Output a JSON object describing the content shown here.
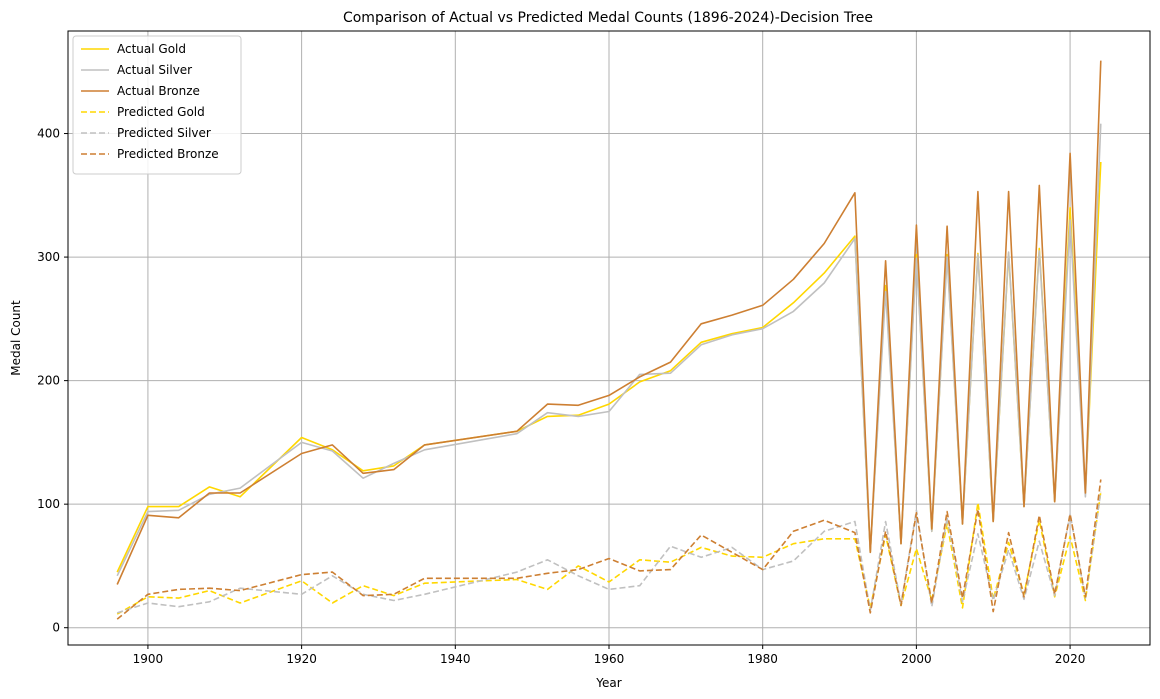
{
  "chart_data": {
    "type": "line",
    "title": "Comparison of Actual vs Predicted Medal Counts (1896-2024)-Decision Tree",
    "xlabel": "Year",
    "ylabel": "Medal Count",
    "xlim": [
      1889.6,
      2030.4
    ],
    "ylim": [
      -14,
      483
    ],
    "xticks": [
      1900,
      1920,
      1940,
      1960,
      1980,
      2000,
      2020
    ],
    "yticks": [
      0,
      100,
      200,
      300,
      400
    ],
    "grid": true,
    "legend_position": "top-left",
    "x": [
      1896,
      1900,
      1904,
      1908,
      1912,
      1920,
      1924,
      1928,
      1932,
      1936,
      1948,
      1952,
      1956,
      1960,
      1964,
      1968,
      1972,
      1976,
      1980,
      1984,
      1988,
      1992,
      1994,
      1996,
      1998,
      2000,
      2002,
      2004,
      2006,
      2008,
      2010,
      2012,
      2014,
      2016,
      2018,
      2020,
      2022,
      2024
    ],
    "series": [
      {
        "name": "Actual Gold",
        "color": "#FFD700",
        "dash": "solid",
        "values": [
          45,
          98,
          98,
          114,
          106,
          154,
          144,
          127,
          131,
          148,
          159,
          171,
          172,
          181,
          199,
          208,
          231,
          238,
          243,
          263,
          287,
          317,
          61,
          277,
          68,
          302,
          78,
          302,
          84,
          303,
          86,
          303,
          98,
          307,
          102,
          340,
          109,
          377
        ]
      },
      {
        "name": "Actual Silver",
        "color": "#C0C0C0",
        "dash": "solid",
        "values": [
          42,
          94,
          95,
          108,
          113,
          150,
          143,
          121,
          133,
          144,
          157,
          174,
          171,
          175,
          205,
          206,
          229,
          237,
          242,
          256,
          279,
          315,
          61,
          272,
          68,
          299,
          78,
          300,
          84,
          302,
          86,
          304,
          98,
          305,
          102,
          330,
          106,
          408
        ]
      },
      {
        "name": "Actual Bronze",
        "color": "#CD7F32",
        "dash": "solid",
        "values": [
          35,
          91,
          89,
          109,
          109,
          141,
          148,
          125,
          128,
          148,
          159,
          181,
          180,
          188,
          203,
          215,
          246,
          253,
          261,
          282,
          311,
          352,
          61,
          297,
          68,
          326,
          80,
          325,
          84,
          353,
          86,
          353,
          98,
          358,
          102,
          384,
          109,
          459
        ]
      },
      {
        "name": "Predicted Gold",
        "color": "#FFD700",
        "dash": "dashed",
        "values": [
          11,
          25,
          24,
          30,
          20,
          38,
          20,
          34,
          26,
          36,
          39,
          31,
          50,
          37,
          55,
          53,
          65,
          58,
          57,
          68,
          72,
          72,
          16,
          75,
          18,
          64,
          22,
          84,
          16,
          101,
          23,
          69,
          27,
          87,
          25,
          74,
          22,
          110
        ]
      },
      {
        "name": "Predicted Silver",
        "color": "#C0C0C0",
        "dash": "dashed",
        "values": [
          12,
          20,
          17,
          21,
          32,
          27,
          42,
          27,
          22,
          27,
          45,
          55,
          42,
          31,
          34,
          66,
          57,
          65,
          47,
          54,
          78,
          86,
          14,
          86,
          19,
          95,
          17,
          89,
          21,
          76,
          22,
          63,
          23,
          70,
          26,
          92,
          24,
          110
        ]
      },
      {
        "name": "Predicted Bronze",
        "color": "#CD7F32",
        "dash": "dashed",
        "values": [
          7,
          27,
          31,
          32,
          30,
          43,
          45,
          26,
          27,
          40,
          40,
          44,
          47,
          56,
          46,
          47,
          75,
          61,
          47,
          78,
          87,
          77,
          12,
          78,
          18,
          93,
          20,
          94,
          24,
          96,
          13,
          77,
          25,
          91,
          27,
          92,
          25,
          120
        ]
      }
    ]
  }
}
